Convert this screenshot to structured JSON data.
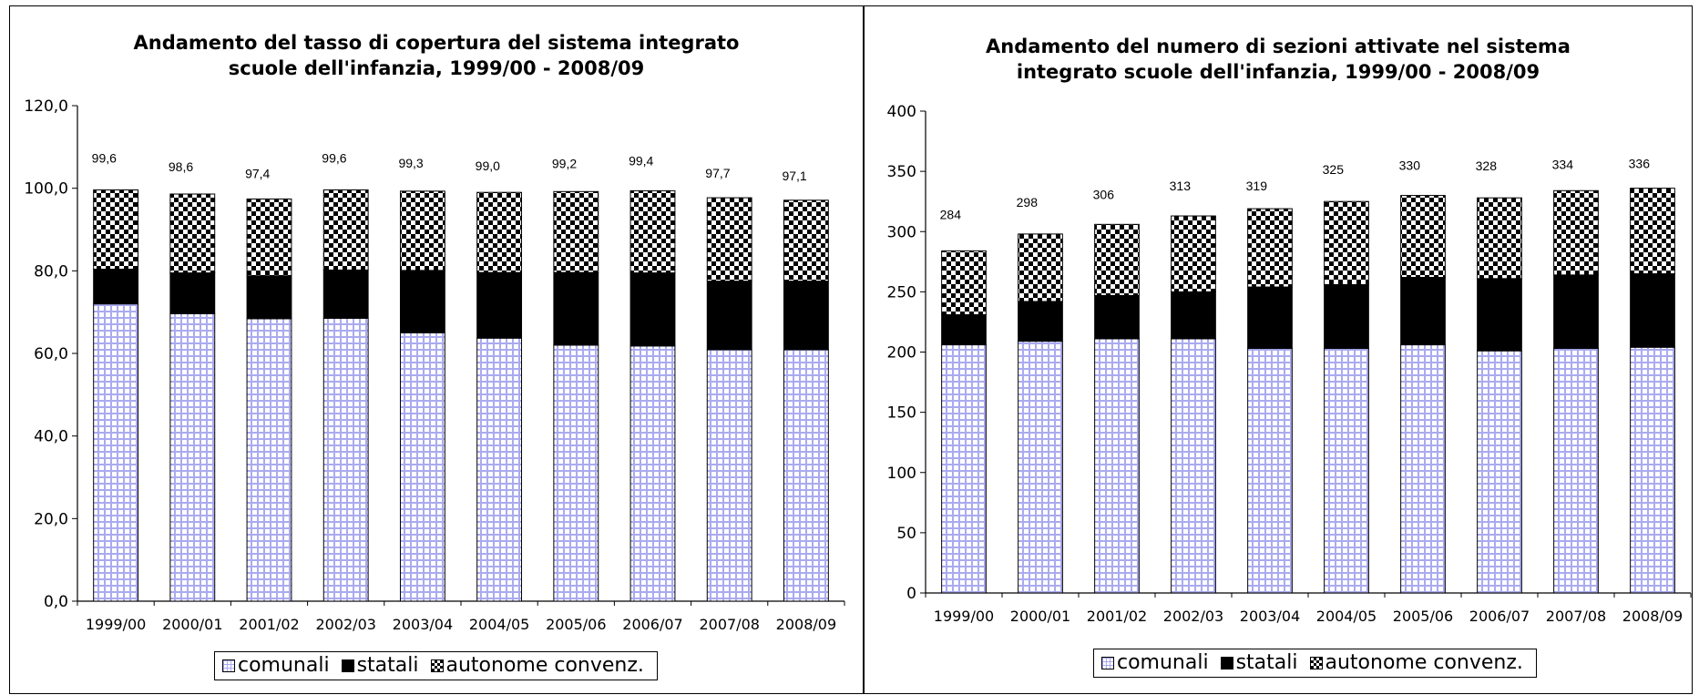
{
  "colors": {
    "comunali": "#aaaaf0",
    "statali": "#000000",
    "autonome": "#000000"
  },
  "legend": {
    "comunali": "comunali",
    "statali": "statali",
    "autonome": "autonome convenz."
  },
  "chart_data": [
    {
      "type": "bar",
      "stacked": true,
      "title": "Andamento del tasso di copertura del sistema integrato\nscuole dell'infanzia,  1999/00 - 2008/09",
      "categories": [
        "1999/00",
        "2000/01",
        "2001/02",
        "2002/03",
        "2003/04",
        "2004/05",
        "2005/06",
        "2006/07",
        "2007/08",
        "2008/09"
      ],
      "series": [
        {
          "name": "comunali",
          "values": [
            72.0,
            69.6,
            68.4,
            68.5,
            65.0,
            63.7,
            62.0,
            61.8,
            60.9,
            60.9
          ]
        },
        {
          "name": "statali",
          "values": [
            8.4,
            9.9,
            10.4,
            11.7,
            15.1,
            15.9,
            17.6,
            17.7,
            16.6,
            16.6
          ]
        },
        {
          "name": "autonome convenz.",
          "values": [
            19.2,
            19.1,
            18.6,
            19.4,
            19.2,
            19.4,
            19.6,
            19.9,
            20.2,
            19.6
          ]
        }
      ],
      "totals": [
        "99,6",
        "98,6",
        "97,4",
        "99,6",
        "99,3",
        "99,0",
        "99,2",
        "99,4",
        "97,7",
        "97,1"
      ],
      "ylim": [
        0,
        120
      ],
      "yticks": [
        "0,0",
        "20,0",
        "40,0",
        "60,0",
        "80,0",
        "100,0",
        "120,0"
      ],
      "legend_position": "bottom-center"
    },
    {
      "type": "bar",
      "stacked": true,
      "title": "Andamento del numero di sezioni attivate nel sistema\nintegrato scuole dell'infanzia, 1999/00 - 2008/09",
      "categories": [
        "1999/00",
        "2000/01",
        "2001/02",
        "2002/03",
        "2003/04",
        "2004/05",
        "2005/06",
        "2006/07",
        "2007/08",
        "2008/09"
      ],
      "series": [
        {
          "name": "comunali",
          "values": [
            206,
            209,
            211,
            211,
            203,
            203,
            206,
            201,
            203,
            204
          ]
        },
        {
          "name": "statali",
          "values": [
            25,
            33,
            36,
            39,
            51,
            53,
            56,
            60,
            61,
            61
          ]
        },
        {
          "name": "autonome convenz.",
          "values": [
            53,
            56,
            59,
            63,
            65,
            69,
            68,
            67,
            70,
            71
          ]
        }
      ],
      "totals": [
        "284",
        "298",
        "306",
        "313",
        "319",
        "325",
        "330",
        "328",
        "334",
        "336"
      ],
      "ylim": [
        0,
        400
      ],
      "yticks": [
        "0",
        "50",
        "100",
        "150",
        "200",
        "250",
        "300",
        "350",
        "400"
      ],
      "legend_position": "bottom-center"
    }
  ]
}
